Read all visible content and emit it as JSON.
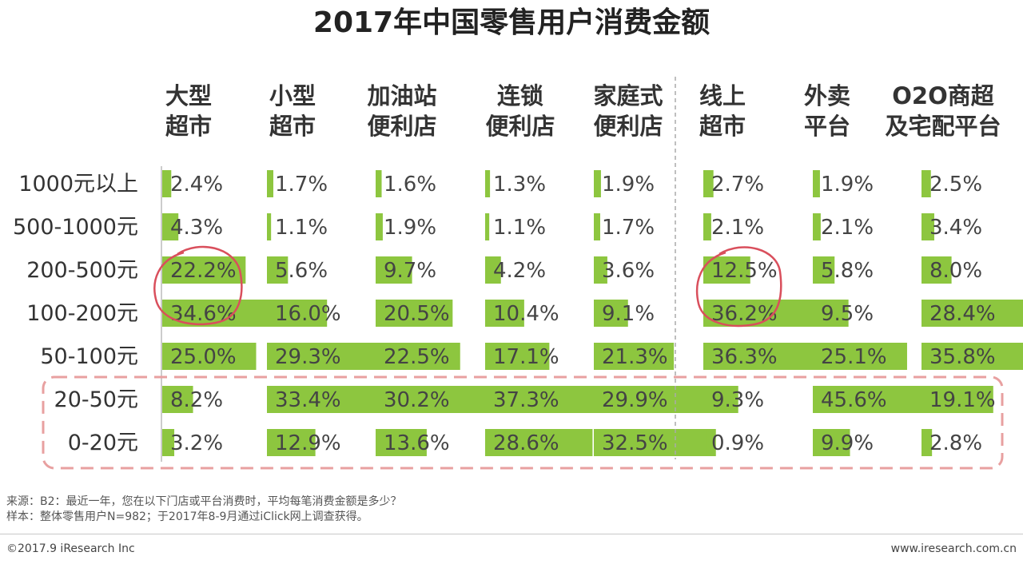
{
  "chart_data": {
    "type": "table",
    "title": "2017年中国零售用户消费金额",
    "unit": "%",
    "columns": [
      {
        "line1": "大型",
        "line2": "超市",
        "values": [
          2.4,
          4.3,
          22.2,
          34.6,
          25.0,
          8.2,
          3.2
        ],
        "labels": [
          "2.4%",
          "4.3%",
          "22.2%",
          "34.6%",
          "25.0%",
          "8.2%",
          "3.2%"
        ]
      },
      {
        "line1": "小型",
        "line2": "超市",
        "values": [
          1.7,
          1.1,
          5.6,
          16.0,
          29.3,
          33.4,
          12.9
        ],
        "labels": [
          "1.7%",
          "1.1%",
          "5.6%",
          "16.0%",
          "29.3%",
          "33.4%",
          "12.9%"
        ]
      },
      {
        "line1": "加油站",
        "line2": "便利店",
        "values": [
          1.6,
          1.9,
          9.7,
          20.5,
          22.5,
          30.2,
          13.6
        ],
        "labels": [
          "1.6%",
          "1.9%",
          "9.7%",
          "20.5%",
          "22.5%",
          "30.2%",
          "13.6%"
        ]
      },
      {
        "line1": "连锁",
        "line2": "便利店",
        "values": [
          1.3,
          1.1,
          4.2,
          10.4,
          17.1,
          37.3,
          28.6
        ],
        "labels": [
          "1.3%",
          "1.1%",
          "4.2%",
          "10.4%",
          "17.1%",
          "37.3%",
          "28.6%"
        ]
      },
      {
        "line1": "家庭式",
        "line2": "便利店",
        "values": [
          1.9,
          1.7,
          3.6,
          9.1,
          21.3,
          29.9,
          32.5
        ],
        "labels": [
          "1.9%",
          "1.7%",
          "3.6%",
          "9.1%",
          "21.3%",
          "29.9%",
          "32.5%"
        ]
      },
      {
        "line1": "线上",
        "line2": "超市",
        "values": [
          2.7,
          2.1,
          12.5,
          36.2,
          36.3,
          9.3,
          0.9
        ],
        "labels": [
          "2.7%",
          "2.1%",
          "12.5%",
          "36.2%",
          "36.3%",
          "9.3%",
          "0.9%"
        ]
      },
      {
        "line1": "外卖",
        "line2": "平台",
        "values": [
          1.9,
          2.1,
          5.8,
          9.5,
          25.1,
          45.6,
          9.9
        ],
        "labels": [
          "1.9%",
          "2.1%",
          "5.8%",
          "9.5%",
          "25.1%",
          "45.6%",
          "9.9%"
        ]
      },
      {
        "line1": "O2O商超",
        "line2": "及宅配平台",
        "values": [
          2.5,
          3.4,
          8.0,
          28.4,
          35.8,
          19.1,
          2.8
        ],
        "labels": [
          "2.5%",
          "3.4%",
          "8.0%",
          "28.4%",
          "35.8%",
          "19.1%",
          "2.8%"
        ]
      }
    ],
    "rows": [
      "1000元以上",
      "500-1000元",
      "200-500元",
      "100-200元",
      "50-100元",
      "20-50元",
      "0-20元"
    ],
    "highlight_rows": [
      "20-50元",
      "0-20元"
    ],
    "circled_cells": [
      [
        "大型超市",
        "200-500元"
      ],
      [
        "大型超市",
        "100-200元"
      ],
      [
        "线上超市",
        "200-500元"
      ],
      [
        "线上超市",
        "100-200元"
      ]
    ]
  },
  "colors": {
    "bar": "#8dc63f",
    "divider": "#aaaaaa",
    "highlight_box": "#e8a0a0",
    "circle": "#d94f5c"
  },
  "footer": {
    "source": "来源：B2：最近一年，您在以下门店或平台消费时，平均每笔消费金额是多少？",
    "sample": "样本：整体零售用户N=982；于2017年8-9月通过iClick网上调查获得。",
    "copyright": "©2017.9 iResearch Inc",
    "site": "www.iresearch.com.cn"
  }
}
